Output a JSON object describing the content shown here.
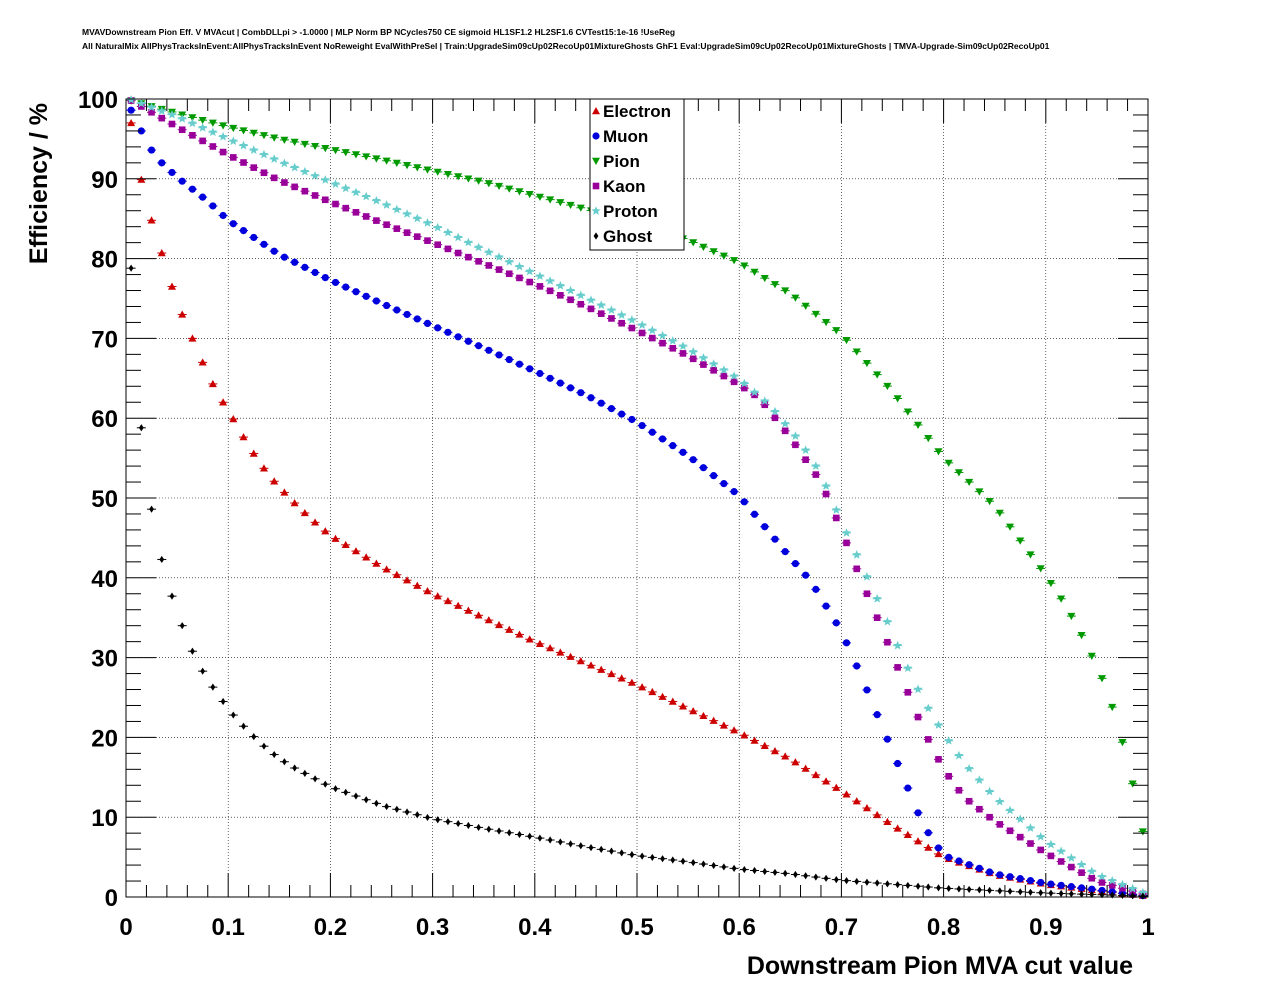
{
  "titles": {
    "line1": "MVAVDownstream Pion Eff. V MVAcut | CombDLLpi > -1.0000 | MLP Norm BP NCycles750 CE sigmoid HL1SF1.2 HL2SF1.6 CVTest15:1e-16 !UseReg",
    "line2": "All NaturalMix AllPhysTracksInEvent:AllPhysTracksInEvent NoReweight EvalWithPreSel | Train:UpgradeSim09cUp02RecoUp01MixtureGhosts GhF1 Eval:UpgradeSim09cUp02RecoUp01MixtureGhosts | TMVA-Upgrade-Sim09cUp02RecoUp01"
  },
  "chart_data": {
    "type": "scatter",
    "title": "",
    "xlabel": "Downstream Pion MVA cut value",
    "ylabel": "Efficiency / %",
    "xlim": [
      0,
      1
    ],
    "ylim": [
      0,
      100
    ],
    "xticks": [
      0,
      0.1,
      0.2,
      0.3,
      0.4,
      0.5,
      0.6,
      0.7,
      0.8,
      0.9,
      1
    ],
    "xtick_labels": [
      "0",
      "0.1",
      "0.2",
      "0.3",
      "0.4",
      "0.5",
      "0.6",
      "0.7",
      "0.8",
      "0.9",
      "1"
    ],
    "yticks": [
      0,
      10,
      20,
      30,
      40,
      50,
      60,
      70,
      80,
      90,
      100
    ],
    "ytick_labels": [
      "0",
      "10",
      "20",
      "30",
      "40",
      "50",
      "60",
      "70",
      "80",
      "90",
      "100"
    ],
    "grid": true,
    "legend_position": "top-center",
    "series": [
      {
        "name": "Electron",
        "marker": "triangle-up",
        "color": "#cc0000",
        "knots": [
          [
            0.005,
            97
          ],
          [
            0.015,
            89.9
          ],
          [
            0.025,
            84.8
          ],
          [
            0.035,
            80.7
          ],
          [
            0.045,
            76.5
          ],
          [
            0.055,
            73
          ],
          [
            0.065,
            70
          ],
          [
            0.075,
            67
          ],
          [
            0.085,
            64.3
          ],
          [
            0.095,
            62
          ],
          [
            0.105,
            59.9
          ],
          [
            0.12,
            56.5
          ],
          [
            0.14,
            52.8
          ],
          [
            0.16,
            50
          ],
          [
            0.18,
            47.5
          ],
          [
            0.2,
            45.3
          ],
          [
            0.25,
            41.4
          ],
          [
            0.3,
            38
          ],
          [
            0.35,
            35
          ],
          [
            0.4,
            32
          ],
          [
            0.45,
            29.3
          ],
          [
            0.5,
            26.6
          ],
          [
            0.55,
            23.6
          ],
          [
            0.6,
            20.6
          ],
          [
            0.65,
            17.3
          ],
          [
            0.7,
            13.3
          ],
          [
            0.75,
            9
          ],
          [
            0.8,
            5
          ],
          [
            0.85,
            2.8
          ],
          [
            0.9,
            1.6
          ],
          [
            0.95,
            0.8
          ],
          [
            1,
            0.1
          ]
        ]
      },
      {
        "name": "Muon",
        "marker": "circle",
        "color": "#0000dd",
        "knots": [
          [
            0.005,
            98.6
          ],
          [
            0.015,
            96
          ],
          [
            0.025,
            93.6
          ],
          [
            0.035,
            92
          ],
          [
            0.05,
            90.2
          ],
          [
            0.08,
            87.2
          ],
          [
            0.1,
            84.8
          ],
          [
            0.15,
            80.5
          ],
          [
            0.2,
            77.3
          ],
          [
            0.25,
            74.4
          ],
          [
            0.3,
            71.6
          ],
          [
            0.35,
            68.8
          ],
          [
            0.4,
            65.9
          ],
          [
            0.45,
            62.9
          ],
          [
            0.5,
            59.5
          ],
          [
            0.55,
            55.3
          ],
          [
            0.6,
            50.3
          ],
          [
            0.65,
            42.5
          ],
          [
            0.67,
            39.6
          ],
          [
            0.7,
            33.3
          ],
          [
            0.72,
            27.5
          ],
          [
            0.74,
            21.3
          ],
          [
            0.76,
            15.2
          ],
          [
            0.78,
            9
          ],
          [
            0.8,
            5.2
          ],
          [
            0.85,
            2.9
          ],
          [
            0.9,
            1.7
          ],
          [
            0.95,
            0.9
          ],
          [
            1,
            0.1
          ]
        ]
      },
      {
        "name": "Pion",
        "marker": "triangle-down",
        "color": "#009900",
        "knots": [
          [
            0.005,
            99.8
          ],
          [
            0.05,
            98.2
          ],
          [
            0.1,
            96.5
          ],
          [
            0.15,
            95
          ],
          [
            0.2,
            93.7
          ],
          [
            0.25,
            92.4
          ],
          [
            0.3,
            91
          ],
          [
            0.35,
            89.6
          ],
          [
            0.4,
            87.9
          ],
          [
            0.45,
            86.2
          ],
          [
            0.5,
            84.4
          ],
          [
            0.55,
            82.3
          ],
          [
            0.6,
            79.5
          ],
          [
            0.65,
            75.6
          ],
          [
            0.7,
            70.5
          ],
          [
            0.75,
            63.3
          ],
          [
            0.8,
            55
          ],
          [
            0.85,
            49
          ],
          [
            0.9,
            40.3
          ],
          [
            0.92,
            36.4
          ],
          [
            0.94,
            31.6
          ],
          [
            0.96,
            26
          ],
          [
            0.98,
            17.2
          ],
          [
            0.995,
            8.2
          ]
        ]
      },
      {
        "name": "Kaon",
        "marker": "square",
        "color": "#990099",
        "knots": [
          [
            0.005,
            99.8
          ],
          [
            0.05,
            96.5
          ],
          [
            0.1,
            93
          ],
          [
            0.15,
            89.8
          ],
          [
            0.2,
            87.1
          ],
          [
            0.25,
            84.5
          ],
          [
            0.3,
            82
          ],
          [
            0.35,
            79.4
          ],
          [
            0.4,
            76.8
          ],
          [
            0.45,
            74
          ],
          [
            0.5,
            71
          ],
          [
            0.55,
            67.8
          ],
          [
            0.6,
            64.2
          ],
          [
            0.62,
            62.5
          ],
          [
            0.65,
            57.6
          ],
          [
            0.68,
            52
          ],
          [
            0.7,
            46
          ],
          [
            0.72,
            39.5
          ],
          [
            0.74,
            33.5
          ],
          [
            0.76,
            27.2
          ],
          [
            0.78,
            21
          ],
          [
            0.8,
            16
          ],
          [
            0.82,
            12.5
          ],
          [
            0.85,
            9.5
          ],
          [
            0.9,
            5.5
          ],
          [
            0.95,
            2
          ],
          [
            1,
            0.2
          ]
        ]
      },
      {
        "name": "Proton",
        "marker": "star",
        "color": "#66cccc",
        "knots": [
          [
            0.005,
            99.9
          ],
          [
            0.05,
            97.8
          ],
          [
            0.1,
            95
          ],
          [
            0.15,
            92.2
          ],
          [
            0.2,
            89.6
          ],
          [
            0.25,
            87
          ],
          [
            0.3,
            84.2
          ],
          [
            0.35,
            81.1
          ],
          [
            0.4,
            78.1
          ],
          [
            0.45,
            75.1
          ],
          [
            0.5,
            72
          ],
          [
            0.55,
            68.7
          ],
          [
            0.6,
            64.9
          ],
          [
            0.63,
            61.6
          ],
          [
            0.66,
            57
          ],
          [
            0.68,
            53
          ],
          [
            0.7,
            47
          ],
          [
            0.72,
            41.5
          ],
          [
            0.74,
            36
          ],
          [
            0.76,
            30
          ],
          [
            0.78,
            24.7
          ],
          [
            0.8,
            20.5
          ],
          [
            0.82,
            16.8
          ],
          [
            0.85,
            12.5
          ],
          [
            0.9,
            7
          ],
          [
            0.95,
            2.8
          ],
          [
            1,
            0.3
          ]
        ]
      },
      {
        "name": "Ghost",
        "marker": "diamond",
        "color": "#000000",
        "knots": [
          [
            0.005,
            78.8
          ],
          [
            0.015,
            58.8
          ],
          [
            0.025,
            48.6
          ],
          [
            0.035,
            42.3
          ],
          [
            0.045,
            37.7
          ],
          [
            0.055,
            34
          ],
          [
            0.065,
            30.8
          ],
          [
            0.075,
            28.3
          ],
          [
            0.085,
            26.3
          ],
          [
            0.095,
            24.5
          ],
          [
            0.105,
            22.8
          ],
          [
            0.12,
            20.7
          ],
          [
            0.14,
            18.3
          ],
          [
            0.16,
            16.5
          ],
          [
            0.2,
            13.8
          ],
          [
            0.25,
            11.5
          ],
          [
            0.3,
            9.8
          ],
          [
            0.35,
            8.6
          ],
          [
            0.4,
            7.5
          ],
          [
            0.45,
            6.3
          ],
          [
            0.5,
            5.2
          ],
          [
            0.55,
            4.4
          ],
          [
            0.6,
            3.5
          ],
          [
            0.65,
            2.9
          ],
          [
            0.7,
            2.1
          ],
          [
            0.75,
            1.6
          ],
          [
            0.8,
            1.1
          ],
          [
            0.85,
            0.8
          ],
          [
            0.9,
            0.5
          ],
          [
            0.95,
            0.3
          ],
          [
            1,
            0.1
          ]
        ]
      }
    ]
  }
}
